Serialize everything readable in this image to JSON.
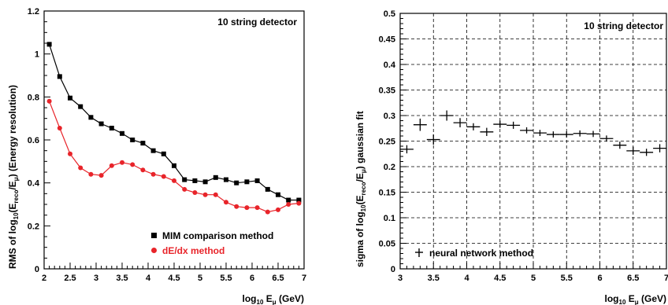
{
  "chart_data": [
    {
      "type": "line",
      "title": "",
      "annotation": "10 string detector",
      "xlabel": "log10 Eμ (GeV)",
      "ylabel": "RMS of log10(Ereco/Eμ) (Energy resolution)",
      "xlim": [
        2,
        7
      ],
      "ylim": [
        0,
        1.2
      ],
      "xticks": [
        "2",
        "2.5",
        "3",
        "3.5",
        "4",
        "4.5",
        "5",
        "5.5",
        "6",
        "6.5",
        "7"
      ],
      "yticks": [
        "0",
        "0.2",
        "0.4",
        "0.6",
        "0.8",
        "1",
        "1.2"
      ],
      "grid": false,
      "legend": "bottom-right",
      "series": [
        {
          "name": "MIM comparison method",
          "color": "#000000",
          "marker": "square",
          "x": [
            2.1,
            2.3,
            2.5,
            2.7,
            2.9,
            3.1,
            3.3,
            3.5,
            3.7,
            3.9,
            4.1,
            4.3,
            4.5,
            4.7,
            4.9,
            5.1,
            5.3,
            5.5,
            5.7,
            5.9,
            6.1,
            6.3,
            6.5,
            6.7,
            6.9
          ],
          "values": [
            1.045,
            0.895,
            0.795,
            0.755,
            0.705,
            0.675,
            0.655,
            0.63,
            0.6,
            0.585,
            0.55,
            0.535,
            0.48,
            0.415,
            0.41,
            0.405,
            0.425,
            0.415,
            0.4,
            0.405,
            0.41,
            0.37,
            0.345,
            0.32,
            0.32
          ]
        },
        {
          "name": "dE/dx method",
          "color": "#e8242a",
          "marker": "circle",
          "x": [
            2.1,
            2.3,
            2.5,
            2.7,
            2.9,
            3.1,
            3.3,
            3.5,
            3.7,
            3.9,
            4.1,
            4.3,
            4.5,
            4.7,
            4.9,
            5.1,
            5.3,
            5.5,
            5.7,
            5.9,
            6.1,
            6.3,
            6.5,
            6.7,
            6.9
          ],
          "values": [
            0.78,
            0.655,
            0.535,
            0.47,
            0.44,
            0.435,
            0.48,
            0.495,
            0.485,
            0.46,
            0.44,
            0.43,
            0.41,
            0.37,
            0.355,
            0.345,
            0.345,
            0.31,
            0.29,
            0.285,
            0.285,
            0.265,
            0.275,
            0.3,
            0.305
          ]
        }
      ]
    },
    {
      "type": "scatter",
      "title": "",
      "annotation": "10 string detector",
      "xlabel": "log10 Eμ (GeV)",
      "ylabel": "sigma of log10(Ereco/Eμ) gaussian fit",
      "xlim": [
        3,
        7
      ],
      "ylim": [
        0,
        0.5
      ],
      "xticks": [
        "3",
        "3.5",
        "4",
        "4.5",
        "5",
        "5.5",
        "6",
        "6.5",
        "7"
      ],
      "yticks": [
        "0",
        "0.05",
        "0.1",
        "0.15",
        "0.2",
        "0.25",
        "0.3",
        "0.35",
        "0.4",
        "0.45",
        "0.5"
      ],
      "grid": true,
      "legend": "bottom-left",
      "series": [
        {
          "name": "neural network method",
          "color": "#000000",
          "marker": "cross",
          "x": [
            3.1,
            3.3,
            3.5,
            3.7,
            3.9,
            4.1,
            4.3,
            4.5,
            4.7,
            4.9,
            5.1,
            5.3,
            5.5,
            5.7,
            5.9,
            6.1,
            6.3,
            6.5,
            6.7,
            6.9
          ],
          "values": [
            0.234,
            0.282,
            0.253,
            0.3,
            0.286,
            0.278,
            0.268,
            0.283,
            0.281,
            0.271,
            0.266,
            0.263,
            0.263,
            0.265,
            0.264,
            0.255,
            0.242,
            0.231,
            0.228,
            0.236
          ],
          "xerr": [
            0.1,
            0.1,
            0.1,
            0.1,
            0.1,
            0.1,
            0.1,
            0.1,
            0.1,
            0.1,
            0.1,
            0.1,
            0.1,
            0.1,
            0.1,
            0.1,
            0.1,
            0.1,
            0.1,
            0.1
          ],
          "yerr": [
            0.008,
            0.012,
            0.01,
            0.01,
            0.009,
            0.007,
            0.008,
            0.007,
            0.007,
            0.006,
            0.006,
            0.006,
            0.006,
            0.006,
            0.006,
            0.006,
            0.007,
            0.008,
            0.007,
            0.008
          ]
        }
      ]
    }
  ]
}
